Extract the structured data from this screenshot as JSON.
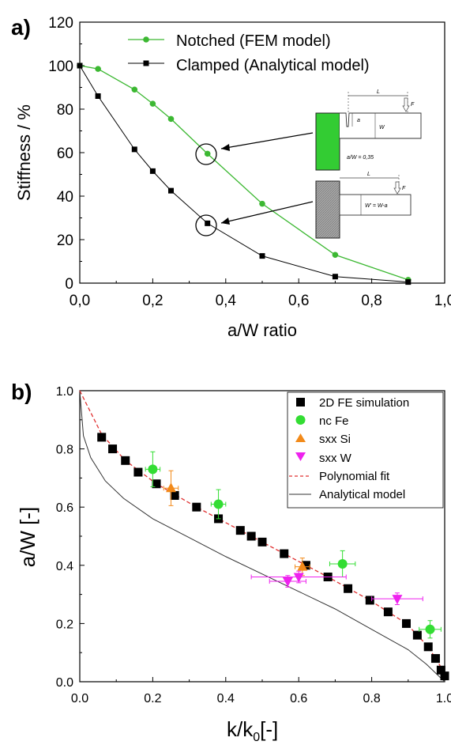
{
  "chart_data": [
    {
      "panel_label": "a)",
      "type": "line",
      "xlabel": "a/W ratio",
      "ylabel": "Stiffness / %",
      "xlim": [
        0.0,
        1.0
      ],
      "ylim": [
        0,
        120
      ],
      "x_ticks": [
        "0,0",
        "0,2",
        "0,4",
        "0,6",
        "0,8",
        "1,0"
      ],
      "y_ticks": [
        "0",
        "20",
        "40",
        "60",
        "80",
        "100",
        "120"
      ],
      "legend_position": "top-right",
      "colors": {
        "notched": "#3cb832",
        "clamped": "#000000",
        "green_block": "#33cc33",
        "gray_block": "#9a9a9a"
      },
      "series": [
        {
          "name": "Notched (FEM model)",
          "marker": "circle",
          "x": [
            0.0,
            0.05,
            0.15,
            0.2,
            0.25,
            0.35,
            0.5,
            0.7,
            0.9
          ],
          "y": [
            100,
            98.5,
            89,
            82.5,
            75.5,
            59.5,
            36.5,
            13,
            1.5
          ]
        },
        {
          "name": "Clamped (Analytical model)",
          "marker": "square",
          "x": [
            0.0,
            0.05,
            0.15,
            0.2,
            0.25,
            0.35,
            0.5,
            0.7,
            0.9
          ],
          "y": [
            100,
            86,
            61.5,
            51.5,
            42.5,
            27.5,
            12.5,
            3,
            0.5
          ]
        }
      ],
      "highlighted_points": [
        {
          "x": 0.35,
          "y": 59.5
        },
        {
          "x": 0.35,
          "y": 27.5
        }
      ],
      "inset": {
        "notched_labels": {
          "length": "L",
          "force": "F",
          "notch": "a",
          "width": "W",
          "ratio": "a/W = 0,35"
        },
        "clamped_labels": {
          "length": "L",
          "force": "F",
          "width": "W' = W-a"
        }
      }
    },
    {
      "panel_label": "b)",
      "type": "scatter",
      "xlabel_main": "k/k",
      "xlabel_sub": "0",
      "xlabel_tail": "[-]",
      "ylabel": "a/W [-]",
      "xlim": [
        0.0,
        1.0
      ],
      "ylim": [
        0.0,
        1.0
      ],
      "x_ticks": [
        "0.0",
        "0.2",
        "0.4",
        "0.6",
        "0.8",
        "1.0"
      ],
      "y_ticks": [
        "0.0",
        "0.2",
        "0.4",
        "0.6",
        "0.8",
        "1.0"
      ],
      "legend_position": "top-right",
      "series": [
        {
          "name": "2D FE simulation",
          "marker": "square",
          "color": "#000000",
          "x": [
            0.06,
            0.09,
            0.125,
            0.16,
            0.21,
            0.26,
            0.32,
            0.38,
            0.44,
            0.47,
            0.5,
            0.56,
            0.62,
            0.68,
            0.735,
            0.795,
            0.845,
            0.895,
            0.925,
            0.955,
            0.975,
            0.99,
            1.0
          ],
          "y": [
            0.84,
            0.8,
            0.76,
            0.72,
            0.68,
            0.64,
            0.6,
            0.56,
            0.52,
            0.5,
            0.48,
            0.44,
            0.4,
            0.36,
            0.32,
            0.28,
            0.24,
            0.2,
            0.16,
            0.12,
            0.08,
            0.04,
            0.02
          ]
        },
        {
          "name": "nc Fe",
          "marker": "circle",
          "color": "#33dd33",
          "x": [
            0.2,
            0.38,
            0.72,
            0.96
          ],
          "y": [
            0.73,
            0.61,
            0.405,
            0.18
          ],
          "xerr": [
            0.02,
            0.02,
            0.035,
            0.03
          ],
          "yerr": [
            0.06,
            0.05,
            0.045,
            0.03
          ]
        },
        {
          "name": "sxx Si",
          "marker": "triangle-up",
          "color": "#f28a1a",
          "x": [
            0.25,
            0.61
          ],
          "y": [
            0.665,
            0.395
          ],
          "xerr": [
            0.02,
            0.02
          ],
          "yerr": [
            0.06,
            0.03
          ]
        },
        {
          "name": "sxx W",
          "marker": "triangle-down",
          "color": "#ee22ee",
          "x": [
            0.57,
            0.6,
            0.87
          ],
          "y": [
            0.345,
            0.36,
            0.285
          ],
          "xerr": [
            0.05,
            0.13,
            0.07
          ],
          "yerr": [
            0.02,
            0.02,
            0.02
          ]
        },
        {
          "name": "Polynomial fit",
          "style": "dashed",
          "color": "#e03030",
          "x": [
            0.0,
            0.06,
            0.125,
            0.21,
            0.32,
            0.44,
            0.56,
            0.68,
            0.795,
            0.895,
            0.955,
            0.99,
            1.0
          ],
          "y": [
            1.0,
            0.85,
            0.76,
            0.68,
            0.6,
            0.52,
            0.44,
            0.36,
            0.28,
            0.2,
            0.12,
            0.05,
            0.0
          ]
        },
        {
          "name": "Analytical model",
          "style": "solid",
          "color": "#333333",
          "x": [
            0.0,
            0.01,
            0.03,
            0.07,
            0.12,
            0.2,
            0.3,
            0.4,
            0.5,
            0.6,
            0.7,
            0.8,
            0.9,
            0.95,
            1.0
          ],
          "y": [
            1.0,
            0.845,
            0.77,
            0.69,
            0.63,
            0.56,
            0.495,
            0.43,
            0.37,
            0.31,
            0.25,
            0.18,
            0.11,
            0.06,
            0.0
          ]
        }
      ]
    }
  ]
}
